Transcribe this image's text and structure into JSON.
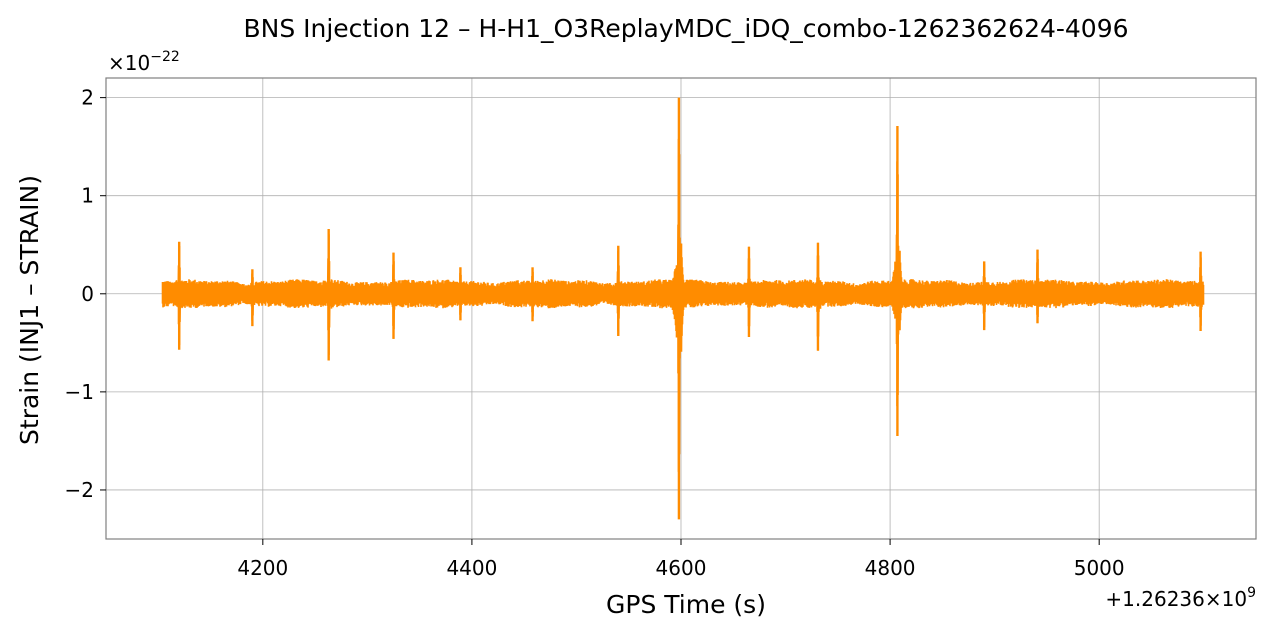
{
  "chart_data": {
    "type": "line",
    "title": "BNS Injection 12 – H-H1_O3ReplayMDC_iDQ_combo-1262362624-4096",
    "xlabel": "GPS Time (s)",
    "ylabel": "Strain (INJ1 – STRAIN)",
    "y_multiplier": "×10^−22",
    "x_offset": "+1.26236×10^9",
    "xlim": [
      4050,
      5150
    ],
    "ylim": [
      -2.5,
      2.2
    ],
    "x_ticks": [
      4200,
      4400,
      4600,
      4800,
      5000
    ],
    "x_tick_labels": [
      "4200",
      "4400",
      "4600",
      "4800",
      "5000"
    ],
    "y_ticks": [
      2,
      1,
      0,
      -1,
      -2
    ],
    "y_tick_labels": [
      "2",
      "1",
      "0",
      "−1",
      "−2"
    ],
    "grid": true,
    "line_color": "#ff8c00",
    "series": [
      {
        "x_range": [
          4104,
          5100
        ],
        "baseline_noise_amplitude": 0.12,
        "bursts": [
          {
            "x": 4120,
            "max": 0.53,
            "min": -0.57
          },
          {
            "x": 4190,
            "max": 0.25,
            "min": -0.33
          },
          {
            "x": 4263,
            "max": 0.66,
            "min": -0.68
          },
          {
            "x": 4325,
            "max": 0.42,
            "min": -0.46
          },
          {
            "x": 4389,
            "max": 0.27,
            "min": -0.27
          },
          {
            "x": 4458,
            "max": 0.27,
            "min": -0.28
          },
          {
            "x": 4540,
            "max": 0.49,
            "min": -0.43
          },
          {
            "x": 4598,
            "max": 2.0,
            "min": -2.3
          },
          {
            "x": 4665,
            "max": 0.48,
            "min": -0.44
          },
          {
            "x": 4731,
            "max": 0.52,
            "min": -0.58
          },
          {
            "x": 4807,
            "max": 1.71,
            "min": -1.45
          },
          {
            "x": 4890,
            "max": 0.33,
            "min": -0.37
          },
          {
            "x": 4941,
            "max": 0.45,
            "min": -0.3
          },
          {
            "x": 5097,
            "max": 0.43,
            "min": -0.38
          }
        ]
      }
    ]
  }
}
